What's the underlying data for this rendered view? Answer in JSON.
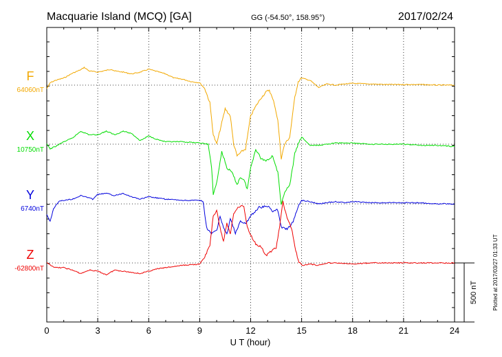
{
  "header": {
    "title": "Macquarie Island (MCQ)  [GA]",
    "coords": "GG (-54.50°, 158.95°)",
    "date": "2017/02/24"
  },
  "footer": {
    "plotted": "Plotted at 2017/03/27 01:33 UT"
  },
  "chart_data": {
    "type": "line",
    "xlabel": "U T (hour)",
    "xlim": [
      0,
      24
    ],
    "xticks": [
      0,
      3,
      6,
      9,
      12,
      15,
      18,
      21,
      24
    ],
    "grid": true,
    "scale_bar": {
      "label": "500 nT",
      "value_nT": 500
    },
    "series": [
      {
        "name": "F",
        "baseline_label": "64060nT",
        "baseline_nT": 64060,
        "color": "#f2a800",
        "points": [
          [
            0.0,
            -30
          ],
          [
            0.2,
            20
          ],
          [
            0.5,
            40
          ],
          [
            1.0,
            60
          ],
          [
            1.5,
            100
          ],
          [
            2.0,
            130
          ],
          [
            2.2,
            150
          ],
          [
            2.5,
            120
          ],
          [
            3.0,
            110
          ],
          [
            3.5,
            125
          ],
          [
            3.8,
            135
          ],
          [
            4.0,
            120
          ],
          [
            4.5,
            110
          ],
          [
            5.0,
            95
          ],
          [
            5.5,
            110
          ],
          [
            6.0,
            135
          ],
          [
            6.5,
            115
          ],
          [
            7.0,
            95
          ],
          [
            7.5,
            60
          ],
          [
            8.0,
            50
          ],
          [
            8.5,
            30
          ],
          [
            9.0,
            20
          ],
          [
            9.3,
            -30
          ],
          [
            9.6,
            -150
          ],
          [
            9.8,
            -420
          ],
          [
            10.0,
            -500
          ],
          [
            10.2,
            -380
          ],
          [
            10.5,
            -200
          ],
          [
            10.8,
            -260
          ],
          [
            11.0,
            -500
          ],
          [
            11.2,
            -600
          ],
          [
            11.5,
            -560
          ],
          [
            11.7,
            -540
          ],
          [
            12.0,
            -260
          ],
          [
            12.3,
            -180
          ],
          [
            12.6,
            -110
          ],
          [
            12.9,
            -60
          ],
          [
            13.1,
            -40
          ],
          [
            13.4,
            -160
          ],
          [
            13.6,
            -300
          ],
          [
            13.8,
            -620
          ],
          [
            14.0,
            -500
          ],
          [
            14.3,
            -440
          ],
          [
            14.6,
            -100
          ],
          [
            14.8,
            30
          ],
          [
            15.0,
            60
          ],
          [
            15.5,
            40
          ],
          [
            16.0,
            -20
          ],
          [
            16.5,
            10
          ],
          [
            17.0,
            0
          ],
          [
            17.5,
            10
          ],
          [
            18.0,
            15
          ],
          [
            19.0,
            10
          ],
          [
            20.0,
            5
          ],
          [
            21.0,
            5
          ],
          [
            22.0,
            5
          ],
          [
            23.0,
            0
          ],
          [
            24.0,
            0
          ]
        ]
      },
      {
        "name": "X",
        "baseline_label": "10750nT",
        "baseline_nT": 10750,
        "color": "#00dd00",
        "points": [
          [
            0.0,
            0
          ],
          [
            0.2,
            -40
          ],
          [
            0.5,
            -20
          ],
          [
            1.0,
            20
          ],
          [
            1.5,
            50
          ],
          [
            2.0,
            110
          ],
          [
            2.5,
            80
          ],
          [
            3.0,
            80
          ],
          [
            3.5,
            110
          ],
          [
            4.0,
            80
          ],
          [
            4.5,
            110
          ],
          [
            5.0,
            90
          ],
          [
            5.5,
            30
          ],
          [
            6.0,
            70
          ],
          [
            6.5,
            40
          ],
          [
            7.0,
            20
          ],
          [
            8.0,
            20
          ],
          [
            9.0,
            10
          ],
          [
            9.5,
            0
          ],
          [
            9.7,
            -200
          ],
          [
            9.8,
            -420
          ],
          [
            10.0,
            -330
          ],
          [
            10.3,
            -60
          ],
          [
            10.6,
            -200
          ],
          [
            10.9,
            -240
          ],
          [
            11.2,
            -340
          ],
          [
            11.4,
            -280
          ],
          [
            11.6,
            -300
          ],
          [
            11.8,
            -380
          ],
          [
            12.0,
            -200
          ],
          [
            12.3,
            -40
          ],
          [
            12.6,
            -120
          ],
          [
            12.9,
            -140
          ],
          [
            13.3,
            -100
          ],
          [
            13.6,
            -240
          ],
          [
            13.8,
            -520
          ],
          [
            14.0,
            -400
          ],
          [
            14.3,
            -350
          ],
          [
            14.6,
            -80
          ],
          [
            14.8,
            0
          ],
          [
            15.0,
            60
          ],
          [
            15.5,
            -10
          ],
          [
            16.0,
            -10
          ],
          [
            16.5,
            0
          ],
          [
            17.0,
            10
          ],
          [
            18.0,
            10
          ],
          [
            19.0,
            0
          ],
          [
            20.0,
            0
          ],
          [
            21.0,
            0
          ],
          [
            22.0,
            -10
          ],
          [
            23.0,
            -10
          ],
          [
            24.0,
            -20
          ]
        ]
      },
      {
        "name": "Y",
        "baseline_label": "6740nT",
        "baseline_nT": 6740,
        "color": "#0000dd",
        "points": [
          [
            0.0,
            -90
          ],
          [
            0.2,
            -150
          ],
          [
            0.4,
            -40
          ],
          [
            0.7,
            20
          ],
          [
            1.0,
            30
          ],
          [
            1.5,
            40
          ],
          [
            2.0,
            70
          ],
          [
            2.3,
            60
          ],
          [
            2.7,
            40
          ],
          [
            3.0,
            80
          ],
          [
            3.5,
            90
          ],
          [
            4.0,
            70
          ],
          [
            4.5,
            90
          ],
          [
            5.0,
            60
          ],
          [
            5.5,
            40
          ],
          [
            6.0,
            60
          ],
          [
            7.0,
            40
          ],
          [
            8.0,
            30
          ],
          [
            9.0,
            30
          ],
          [
            9.2,
            20
          ],
          [
            9.4,
            -200
          ],
          [
            9.7,
            -250
          ],
          [
            10.0,
            -230
          ],
          [
            10.2,
            -100
          ],
          [
            10.4,
            -200
          ],
          [
            10.6,
            -260
          ],
          [
            10.8,
            -120
          ],
          [
            11.1,
            -250
          ],
          [
            11.4,
            -150
          ],
          [
            11.7,
            -170
          ],
          [
            12.0,
            -100
          ],
          [
            12.5,
            -30
          ],
          [
            13.0,
            -20
          ],
          [
            13.3,
            -60
          ],
          [
            13.6,
            -50
          ],
          [
            13.8,
            -200
          ],
          [
            14.2,
            -210
          ],
          [
            14.5,
            -150
          ],
          [
            14.8,
            -20
          ],
          [
            15.0,
            30
          ],
          [
            15.5,
            20
          ],
          [
            16.0,
            0
          ],
          [
            17.0,
            20
          ],
          [
            17.5,
            10
          ],
          [
            18.0,
            20
          ],
          [
            19.0,
            10
          ],
          [
            20.0,
            10
          ],
          [
            21.0,
            10
          ],
          [
            22.0,
            10
          ],
          [
            23.0,
            0
          ],
          [
            24.0,
            0
          ]
        ]
      },
      {
        "name": "Z",
        "baseline_label": "-62800nT",
        "baseline_nT": -62800,
        "color": "#ee0000",
        "points": [
          [
            0.0,
            0
          ],
          [
            0.5,
            -40
          ],
          [
            1.0,
            -40
          ],
          [
            1.5,
            -60
          ],
          [
            2.0,
            -90
          ],
          [
            2.5,
            -60
          ],
          [
            3.0,
            -70
          ],
          [
            3.5,
            -100
          ],
          [
            4.0,
            -60
          ],
          [
            4.5,
            -70
          ],
          [
            5.0,
            -80
          ],
          [
            5.5,
            -90
          ],
          [
            6.0,
            -70
          ],
          [
            6.5,
            -50
          ],
          [
            7.0,
            -40
          ],
          [
            8.0,
            -20
          ],
          [
            9.0,
            -10
          ],
          [
            9.3,
            50
          ],
          [
            9.6,
            150
          ],
          [
            9.8,
            400
          ],
          [
            10.0,
            440
          ],
          [
            10.2,
            300
          ],
          [
            10.4,
            180
          ],
          [
            10.6,
            340
          ],
          [
            10.8,
            240
          ],
          [
            11.0,
            420
          ],
          [
            11.3,
            480
          ],
          [
            11.6,
            480
          ],
          [
            11.8,
            300
          ],
          [
            12.0,
            240
          ],
          [
            12.3,
            160
          ],
          [
            12.6,
            140
          ],
          [
            12.9,
            60
          ],
          [
            13.2,
            100
          ],
          [
            13.5,
            130
          ],
          [
            13.7,
            300
          ],
          [
            13.9,
            520
          ],
          [
            14.1,
            400
          ],
          [
            14.4,
            300
          ],
          [
            14.6,
            140
          ],
          [
            14.8,
            20
          ],
          [
            15.0,
            -20
          ],
          [
            15.5,
            -10
          ],
          [
            16.0,
            -20
          ],
          [
            16.5,
            0
          ],
          [
            17.0,
            0
          ],
          [
            18.0,
            -10
          ],
          [
            19.0,
            0
          ],
          [
            20.0,
            0
          ],
          [
            21.0,
            0
          ],
          [
            22.0,
            0
          ],
          [
            23.0,
            0
          ],
          [
            24.0,
            0
          ]
        ]
      }
    ]
  }
}
